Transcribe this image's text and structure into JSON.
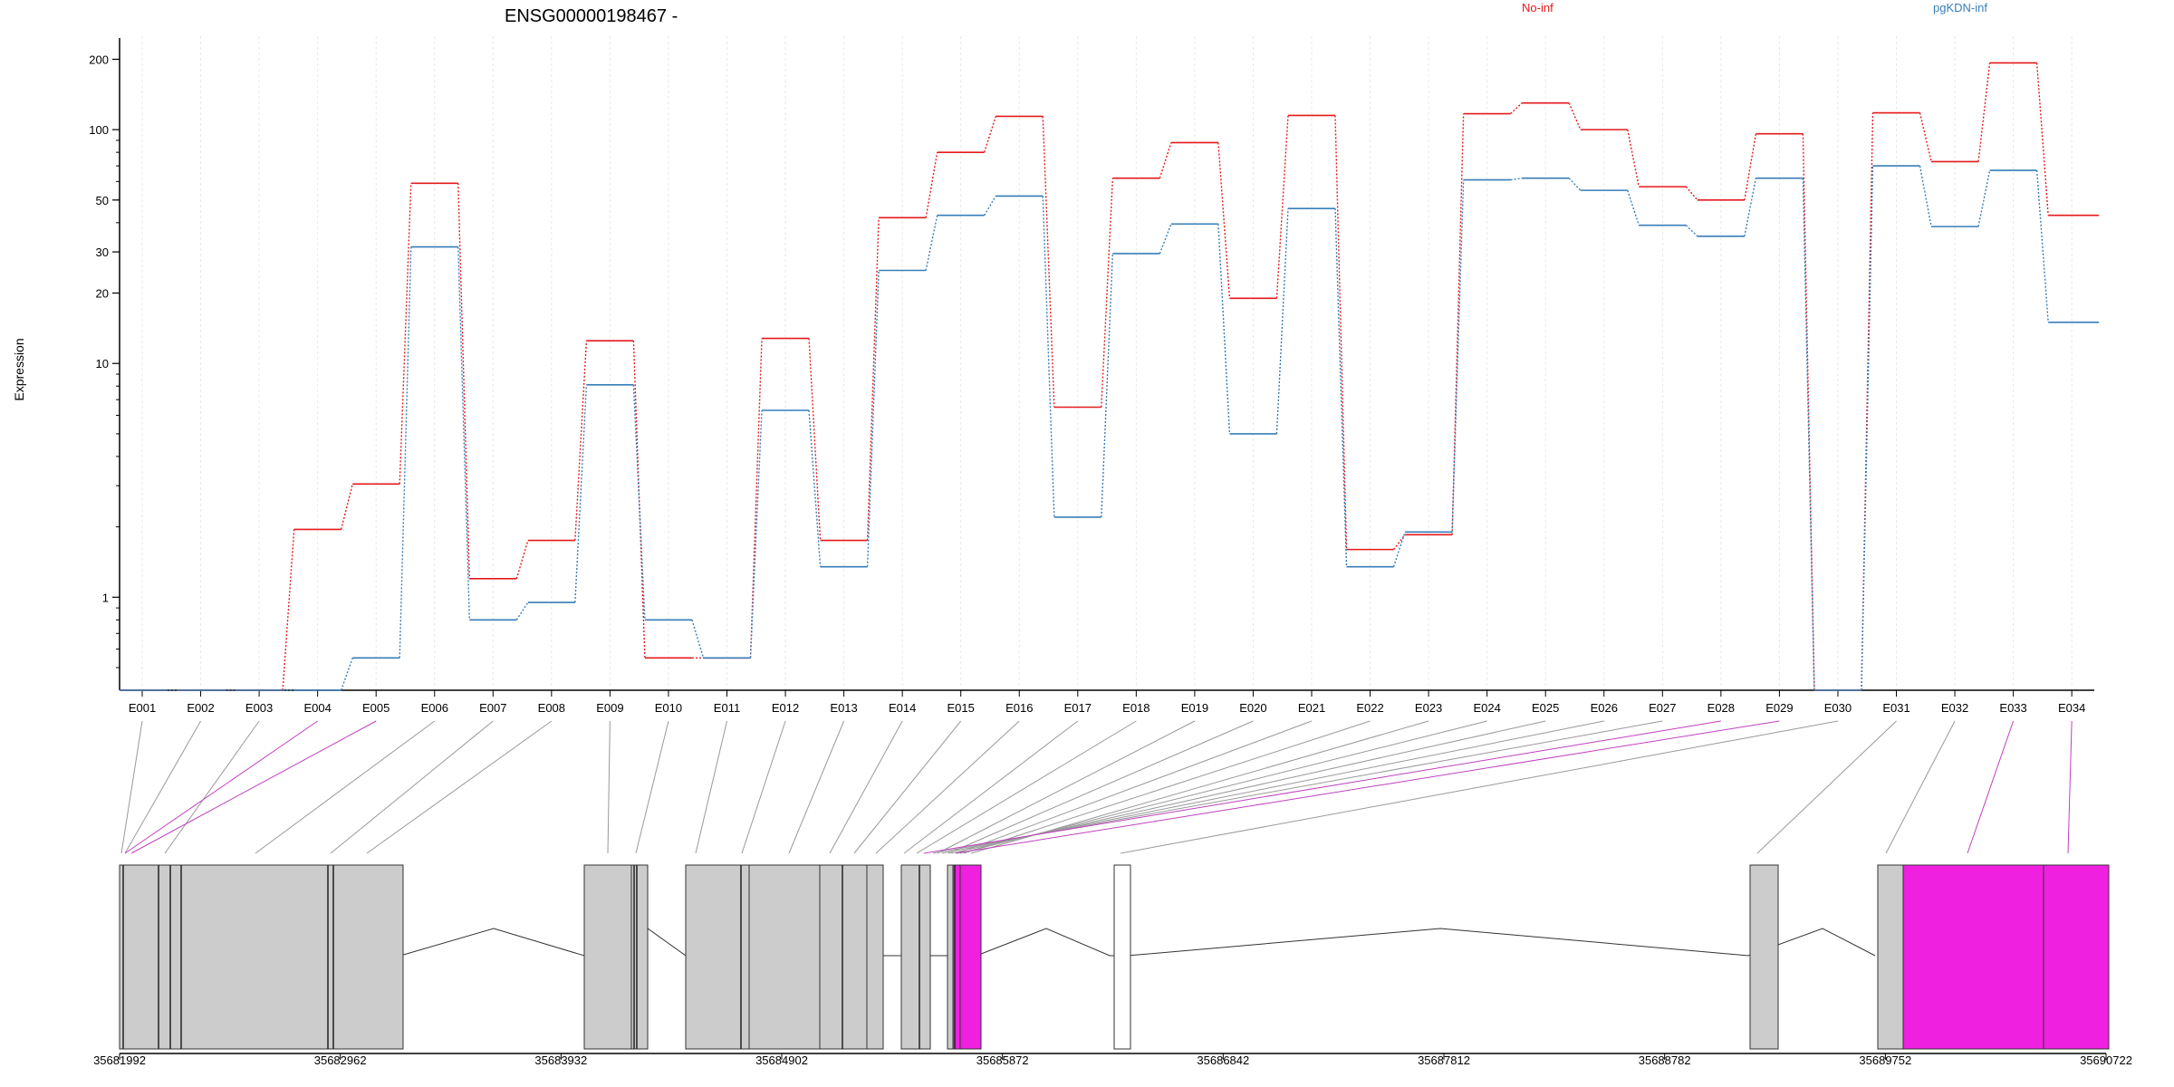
{
  "header": {
    "title": "ENSG00000198467 -"
  },
  "legend": {
    "labels": [
      "No-inf",
      "pgKDN-inf"
    ]
  },
  "chart_data": {
    "type": "line",
    "ylabel": "Expression",
    "yscale": "log",
    "ylim": [
      0.4,
      240
    ],
    "yticks": [
      1,
      10,
      20,
      30,
      50,
      100,
      200
    ],
    "categories": [
      "E001",
      "E002",
      "E003",
      "E004",
      "E005",
      "E006",
      "E007",
      "E008",
      "E009",
      "E010",
      "E011",
      "E012",
      "E013",
      "E014",
      "E015",
      "E016",
      "E017",
      "E018",
      "E019",
      "E020",
      "E021",
      "E022",
      "E023",
      "E024",
      "E025",
      "E026",
      "E027",
      "E028",
      "E029",
      "E030",
      "E031",
      "E032",
      "E033",
      "E034"
    ],
    "series": [
      {
        "name": "No-inf",
        "color": "#e41a1c",
        "values": [
          0.4,
          0.4,
          0.4,
          1.95,
          3.05,
          59,
          1.2,
          1.75,
          12.5,
          0.55,
          0.55,
          12.8,
          1.75,
          42,
          80,
          114,
          6.5,
          62,
          88,
          19,
          115,
          1.6,
          1.85,
          117,
          130,
          100,
          57,
          50,
          96,
          0.4,
          118,
          73,
          193,
          43
        ]
      },
      {
        "name": "pgKDN-inf",
        "color": "#377eb8",
        "values": [
          0.4,
          0.4,
          0.4,
          0.4,
          0.55,
          31.5,
          0.8,
          0.95,
          8.1,
          0.8,
          0.55,
          6.3,
          1.35,
          25,
          43,
          52,
          2.2,
          29.5,
          39.5,
          5,
          46,
          1.35,
          1.9,
          61,
          62,
          55,
          39,
          35,
          62,
          0.4,
          70,
          38.5,
          67,
          15
        ]
      }
    ],
    "genomic_axis": {
      "range": [
        35681992,
        35690722
      ],
      "ticks": [
        35681992,
        35682962,
        35683932,
        35684902,
        35685872,
        35686842,
        35687812,
        35688782,
        35689752,
        35690722
      ]
    },
    "grid": true
  }
}
